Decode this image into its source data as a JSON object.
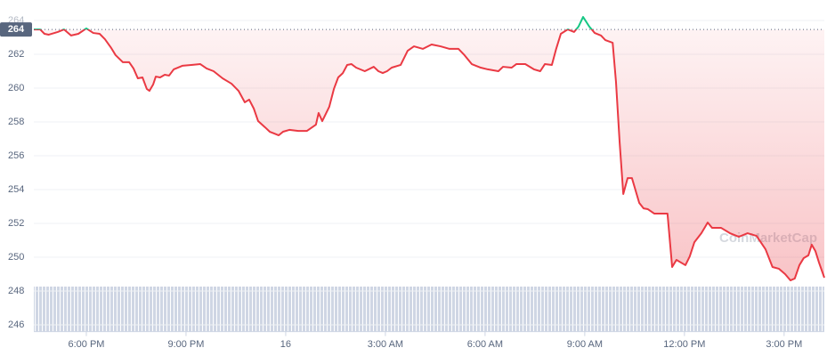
{
  "chart_data": {
    "type": "line",
    "x": [
      16.42,
      16.61,
      16.74,
      16.87,
      17.14,
      17.33,
      17.54,
      17.76,
      18.0,
      18.21,
      18.4,
      18.56,
      18.75,
      18.88,
      19.1,
      19.29,
      19.42,
      19.55,
      19.69,
      19.82,
      19.9,
      20.01,
      20.09,
      20.22,
      20.36,
      20.49,
      20.63,
      20.89,
      21.16,
      21.43,
      21.62,
      21.83,
      22.1,
      22.37,
      22.58,
      22.77,
      22.9,
      23.04,
      23.17,
      23.38,
      23.52,
      23.65,
      23.79,
      23.92,
      24.11,
      24.38,
      24.64,
      24.91,
      24.99,
      25.1,
      25.31,
      25.45,
      25.58,
      25.72,
      25.85,
      25.98,
      26.12,
      26.38,
      26.65,
      26.79,
      26.92,
      27.05,
      27.19,
      27.46,
      27.67,
      27.86,
      28.13,
      28.39,
      28.66,
      28.93,
      29.2,
      29.38,
      29.6,
      29.87,
      30.08,
      30.4,
      30.54,
      30.8,
      30.94,
      31.21,
      31.47,
      31.66,
      31.8,
      32.01,
      32.14,
      32.28,
      32.49,
      32.68,
      32.81,
      32.95,
      33.14,
      33.3,
      33.49,
      33.62,
      33.84,
      33.94,
      34.05,
      34.16,
      34.29,
      34.42,
      34.64,
      34.77,
      34.9,
      35.09,
      35.36,
      35.49,
      35.63,
      35.76,
      36.03,
      36.16,
      36.3,
      36.51,
      36.7,
      36.83,
      37.1,
      37.37,
      37.64,
      37.9,
      38.17,
      38.44,
      38.65,
      38.84,
      39.03,
      39.19,
      39.32,
      39.46,
      39.59,
      39.73,
      39.83,
      39.94,
      40.05,
      40.21
    ],
    "series": [
      {
        "values": [
          263.47,
          263.47,
          263.21,
          263.16,
          263.32,
          263.47,
          263.11,
          263.21,
          263.53,
          263.26,
          263.21,
          262.89,
          262.37,
          261.95,
          261.53,
          261.53,
          261.16,
          260.58,
          260.63,
          259.95,
          259.84,
          260.21,
          260.68,
          260.63,
          260.79,
          260.74,
          261.11,
          261.32,
          261.37,
          261.42,
          261.16,
          261.0,
          260.58,
          260.26,
          259.84,
          259.16,
          259.32,
          258.79,
          258.05,
          257.68,
          257.42,
          257.32,
          257.21,
          257.42,
          257.53,
          257.47,
          257.47,
          257.84,
          258.53,
          258.05,
          258.89,
          259.95,
          260.63,
          260.89,
          261.37,
          261.42,
          261.21,
          261.0,
          261.26,
          261.0,
          260.89,
          261.0,
          261.21,
          261.37,
          262.21,
          262.47,
          262.32,
          262.58,
          262.47,
          262.32,
          262.32,
          261.95,
          261.42,
          261.21,
          261.11,
          261.0,
          261.26,
          261.21,
          261.42,
          261.42,
          261.11,
          261.0,
          261.42,
          261.37,
          262.32,
          263.21,
          263.47,
          263.32,
          263.63,
          264.21,
          263.63,
          263.26,
          263.11,
          262.84,
          262.68,
          260.37,
          256.79,
          253.74,
          254.68,
          254.68,
          253.21,
          252.89,
          252.84,
          252.58,
          252.58,
          252.58,
          249.42,
          249.84,
          249.53,
          250.05,
          250.89,
          251.42,
          252.05,
          251.74,
          251.74,
          251.42,
          251.21,
          251.42,
          251.26,
          250.47,
          249.42,
          249.32,
          249.0,
          248.63,
          248.74,
          249.53,
          249.95,
          250.11,
          250.74,
          250.37,
          249.68,
          248.79
        ],
        "color_up": "#16c784",
        "color_down": "#ea3943"
      }
    ],
    "baseline": {
      "value": 263.47,
      "label": "264"
    },
    "xlim": [
      16.42,
      40.21
    ],
    "xticks": [
      {
        "value": 18,
        "label": "6:00 PM"
      },
      {
        "value": 21,
        "label": "9:00 PM"
      },
      {
        "value": 24,
        "label": "16"
      },
      {
        "value": 27,
        "label": "3:00 AM"
      },
      {
        "value": 30,
        "label": "6:00 AM"
      },
      {
        "value": 33,
        "label": "9:00 AM"
      },
      {
        "value": 36,
        "label": "12:00 PM"
      },
      {
        "value": 39,
        "label": "3:00 PM"
      }
    ],
    "ylim": [
      245.6,
      264.7
    ],
    "yticks": [
      246,
      248,
      250,
      252,
      254,
      256,
      258,
      260,
      262,
      264
    ],
    "grid": true,
    "watermark": "CoinMarketCap"
  }
}
